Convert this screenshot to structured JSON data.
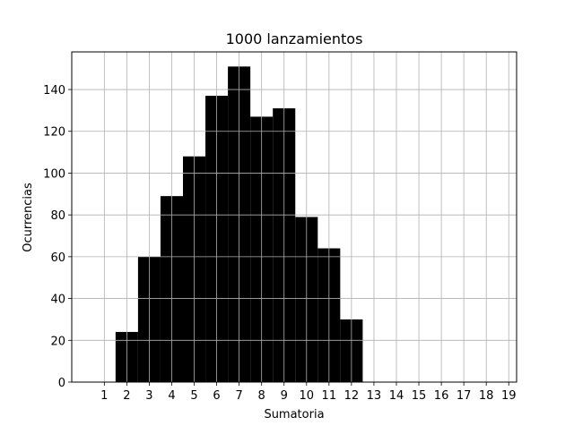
{
  "chart_data": {
    "type": "bar",
    "title": "1000 lanzamientos",
    "xlabel": "Sumatoria",
    "ylabel": "Ocurrencias",
    "x": [
      2,
      3,
      4,
      5,
      6,
      7,
      8,
      9,
      10,
      11,
      12
    ],
    "values": [
      24,
      60,
      89,
      108,
      137,
      151,
      127,
      131,
      79,
      64,
      30
    ],
    "bar_width": 1,
    "xlim": [
      -0.45,
      19.35
    ],
    "ylim": [
      0,
      158
    ],
    "xticks": [
      "1",
      "2",
      "3",
      "4",
      "5",
      "6",
      "7",
      "8",
      "9",
      "10",
      "11",
      "12",
      "13",
      "14",
      "15",
      "16",
      "17",
      "18",
      "19"
    ],
    "yticks": [
      "0",
      "20",
      "40",
      "60",
      "80",
      "100",
      "120",
      "140"
    ],
    "grid": true,
    "legend": "none",
    "bar_color": "#000000",
    "edge_color": "#808080",
    "grid_color": "#b0b0b0"
  }
}
